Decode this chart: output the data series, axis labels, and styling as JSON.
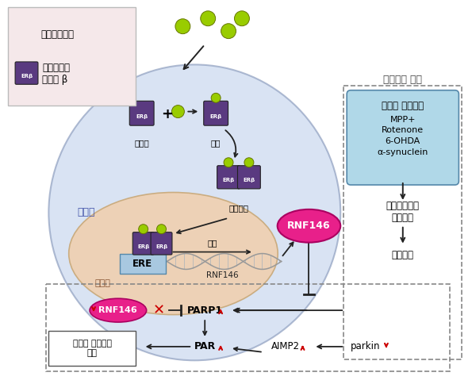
{
  "bg_color": "#f5f5f5",
  "cell_fill": "#c5d5ee",
  "cell_edge": "#8899bb",
  "nucleus_fill": "#f0d0b0",
  "nucleus_edge": "#c8a878",
  "legend_fill": "#f5e8ea",
  "legend_edge": "#bbbbbb",
  "stress_fill": "#b0d8e8",
  "stress_edge": "#5588aa",
  "erb_fill": "#5a3a80",
  "liq_fill": "#99cc00",
  "liq_edge": "#667700",
  "rnf_fill": "#e8208a",
  "rnf_edge": "#aa0060",
  "ere_fill": "#a8c8e0",
  "ere_edge": "#5588aa",
  "dop_fill": "#ffffff",
  "dop_edge": "#555555",
  "arrow_col": "#222222",
  "red_col": "#cc0000",
  "dark_gray": "#444444",
  "path_dash_col": "#888888",
  "세포질_label": "세포질",
  "세포핵_label": "세포핵",
  "비활성_label": "비활성",
  "활성_label": "활성",
  "이합체화_label": "이합체화",
  "전사_label": "전사",
  "병리학적_label": "병리학적 상태",
  "산화적_label": "산화적 스트레스",
  "mpp_label": "MPP+",
  "rot_label": "Rotenone",
  "ohda_label": "6-OHDA",
  "syn_label": "α-synuclein",
  "mito_label": "미토콘드리아\n기능장애",
  "ros_label": "활성산소",
  "dop_label": "도파민 신경세포\n사멸",
  "rnf_label": "RNF146",
  "ere_label": "ERE",
  "par1_label": "PARP1",
  "par_label": "PAR",
  "aimp_label": "AIMP2",
  "parkin_label": "parkin",
  "liq_legend": "리퀴리티게닌",
  "erb_legend": "에스트로겐\n수용체 β"
}
